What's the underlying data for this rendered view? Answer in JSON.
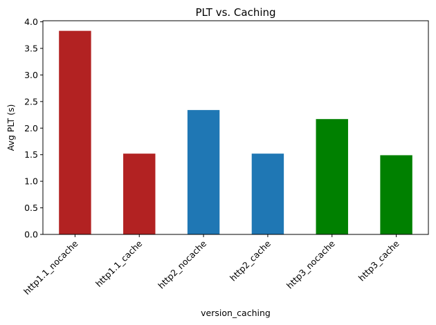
{
  "chart_data": {
    "type": "bar",
    "title": "PLT vs. Caching",
    "xlabel": "version_caching",
    "ylabel": "Avg PLT (s)",
    "categories": [
      "http1.1_nocache",
      "http1.1_cache",
      "http2_nocache",
      "http2_cache",
      "http3_nocache",
      "http3_cache"
    ],
    "values": [
      3.83,
      1.52,
      2.34,
      1.52,
      2.17,
      1.49
    ],
    "colors": [
      "#b22222",
      "#b22222",
      "#1f77b4",
      "#1f77b4",
      "#008000",
      "#008000"
    ],
    "ylim": [
      0,
      4.02
    ],
    "yticks": [
      "0.0",
      "0.5",
      "1.0",
      "1.5",
      "2.0",
      "2.5",
      "3.0",
      "3.5",
      "4.0"
    ],
    "grid": false,
    "legend": "none"
  }
}
